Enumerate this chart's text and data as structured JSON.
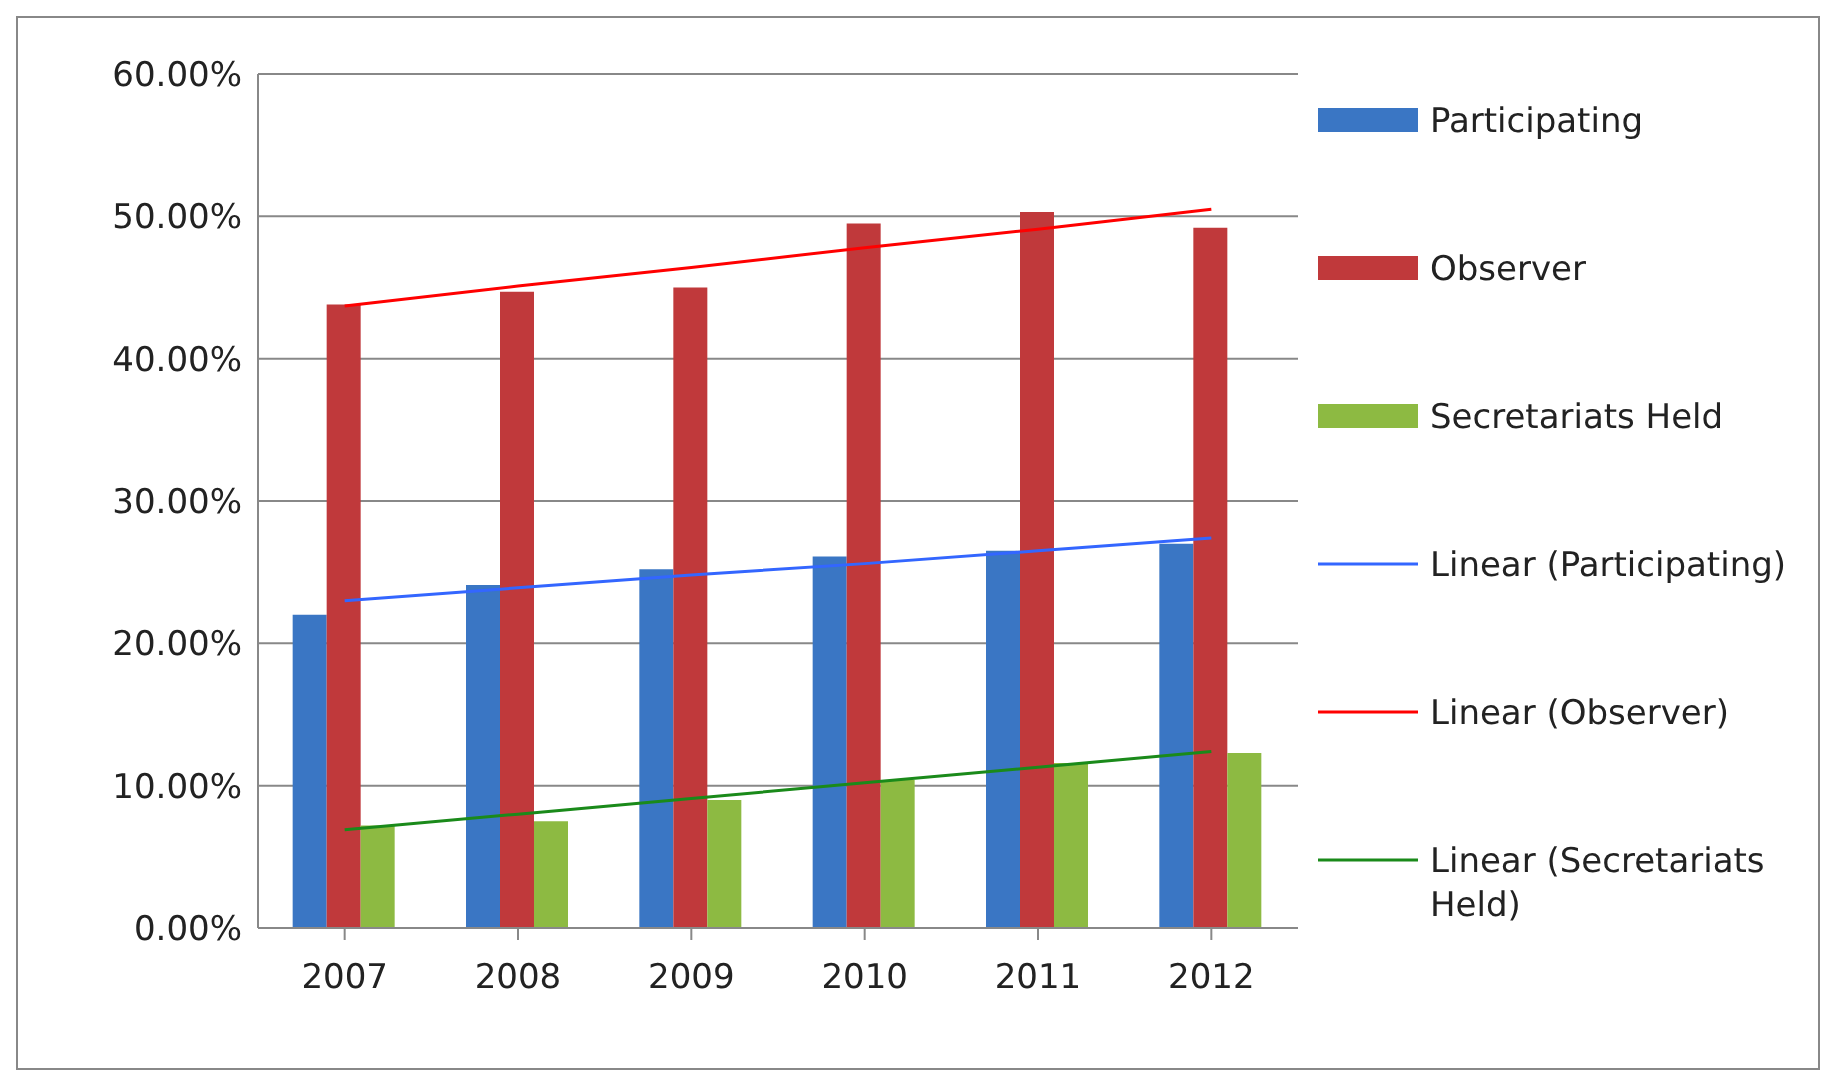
{
  "chart_data": {
    "type": "bar",
    "categories": [
      "2007",
      "2008",
      "2009",
      "2010",
      "2011",
      "2012"
    ],
    "series": [
      {
        "name": "Participating",
        "color": "#3a76c4",
        "values": [
          22,
          24.1,
          25.2,
          26.1,
          26.5,
          27
        ]
      },
      {
        "name": "Observer",
        "color": "#c0393b",
        "values": [
          43.8,
          44.7,
          45,
          49.5,
          50.3,
          49.2
        ]
      },
      {
        "name": "Secretariats Held",
        "color": "#8dba42",
        "values": [
          7.2,
          7.5,
          9,
          10.4,
          11.6,
          12.3
        ]
      },
      {
        "name": "Linear (Participating)",
        "type": "line",
        "color": "#3366ff",
        "values": [
          23,
          23.9,
          24.8,
          25.6,
          26.5,
          27.4
        ]
      },
      {
        "name": "Linear (Observer)",
        "type": "line",
        "color": "#ff0000",
        "values": [
          43.7,
          45.1,
          46.4,
          47.8,
          49.1,
          50.5
        ]
      },
      {
        "name": "Linear (Secretariats Held)",
        "type": "line",
        "color": "#1a8a1a",
        "values": [
          6.9,
          8,
          9.1,
          10.2,
          11.3,
          12.4
        ]
      }
    ],
    "ylim": [
      0,
      60
    ],
    "yticks": [
      {
        "value": 0,
        "label": "0.00%"
      },
      {
        "value": 10,
        "label": "10.00%"
      },
      {
        "value": 20,
        "label": "20.00%"
      },
      {
        "value": 30,
        "label": "30.00%"
      },
      {
        "value": 40,
        "label": "40.00%"
      },
      {
        "value": 50,
        "label": "50.00%"
      },
      {
        "value": 60,
        "label": "60.00%"
      }
    ],
    "grid": "y",
    "legend": "right",
    "marker": "none"
  }
}
